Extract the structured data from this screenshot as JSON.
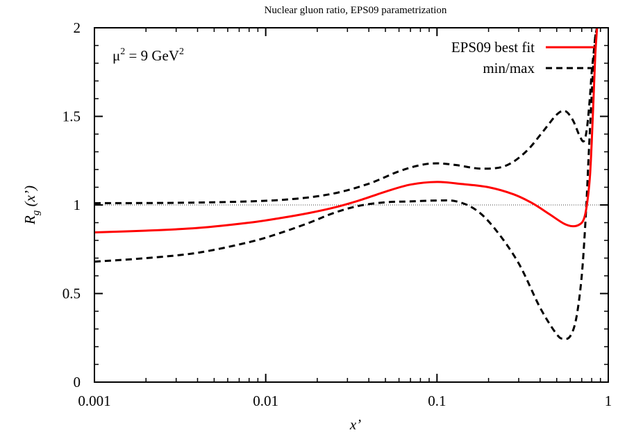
{
  "chart_data": {
    "type": "line",
    "title": "Nuclear gluon ratio, EPS09 parametrization",
    "xlabel": "x’",
    "ylabel": {
      "main": "R",
      "sub": "g",
      "arg": " (x’)"
    },
    "x_scale": "log",
    "xlim": [
      0.001,
      1
    ],
    "ylim": [
      0,
      2
    ],
    "x_ticks": [
      {
        "value": 0.001,
        "label": "0.001"
      },
      {
        "value": 0.01,
        "label": "0.01"
      },
      {
        "value": 0.1,
        "label": "0.1"
      },
      {
        "value": 1,
        "label": "1"
      }
    ],
    "y_ticks": [
      {
        "value": 0,
        "label": "0"
      },
      {
        "value": 0.5,
        "label": "0.5"
      },
      {
        "value": 1,
        "label": "1"
      },
      {
        "value": 1.5,
        "label": "1.5"
      },
      {
        "value": 2,
        "label": "2"
      }
    ],
    "annotation": {
      "base": "μ",
      "exp1": "2",
      "mid": " = 9 GeV",
      "exp2": "2"
    },
    "reference_line": {
      "y": 1,
      "style": "dotted"
    },
    "legend_position": "top-right",
    "series": [
      {
        "name": "EPS09 best fit",
        "color": "#ff0000",
        "dash": "solid",
        "x": [
          0.001,
          0.002,
          0.004,
          0.008,
          0.012,
          0.018,
          0.025,
          0.035,
          0.05,
          0.07,
          0.1,
          0.14,
          0.2,
          0.28,
          0.36,
          0.45,
          0.55,
          0.62,
          0.68,
          0.72,
          0.75,
          0.78,
          0.8,
          0.82,
          0.84,
          0.86
        ],
        "y": [
          0.845,
          0.855,
          0.87,
          0.9,
          0.925,
          0.955,
          0.985,
          1.025,
          1.075,
          1.115,
          1.13,
          1.118,
          1.1,
          1.06,
          1.01,
          0.95,
          0.895,
          0.88,
          0.89,
          0.92,
          1.0,
          1.15,
          1.35,
          1.6,
          1.85,
          2.0
        ]
      },
      {
        "name": "min/max",
        "color": "#000000",
        "dash": "dashed",
        "x": [
          0.001,
          0.003,
          0.008,
          0.015,
          0.025,
          0.04,
          0.06,
          0.08,
          0.1,
          0.13,
          0.18,
          0.25,
          0.33,
          0.42,
          0.5,
          0.56,
          0.62,
          0.68,
          0.72,
          0.75,
          0.78,
          0.8,
          0.82,
          0.84,
          0.86
        ],
        "y": [
          1.01,
          1.012,
          1.02,
          1.035,
          1.065,
          1.12,
          1.19,
          1.225,
          1.235,
          1.225,
          1.205,
          1.22,
          1.3,
          1.42,
          1.51,
          1.53,
          1.48,
          1.39,
          1.36,
          1.43,
          1.6,
          1.75,
          1.85,
          1.95,
          2.0
        ]
      },
      {
        "name": "",
        "color": "#000000",
        "dash": "dashed",
        "x": [
          0.001,
          0.002,
          0.004,
          0.008,
          0.012,
          0.018,
          0.025,
          0.035,
          0.05,
          0.07,
          0.1,
          0.13,
          0.17,
          0.22,
          0.3,
          0.4,
          0.5,
          0.55,
          0.6,
          0.65,
          0.7,
          0.74,
          0.77,
          0.8,
          0.82,
          0.84,
          0.86
        ],
        "y": [
          0.68,
          0.7,
          0.73,
          0.79,
          0.84,
          0.9,
          0.955,
          0.995,
          1.015,
          1.02,
          1.025,
          1.02,
          0.97,
          0.86,
          0.67,
          0.42,
          0.27,
          0.245,
          0.26,
          0.36,
          0.6,
          0.95,
          1.3,
          1.62,
          1.8,
          1.95,
          2.0
        ]
      }
    ]
  }
}
